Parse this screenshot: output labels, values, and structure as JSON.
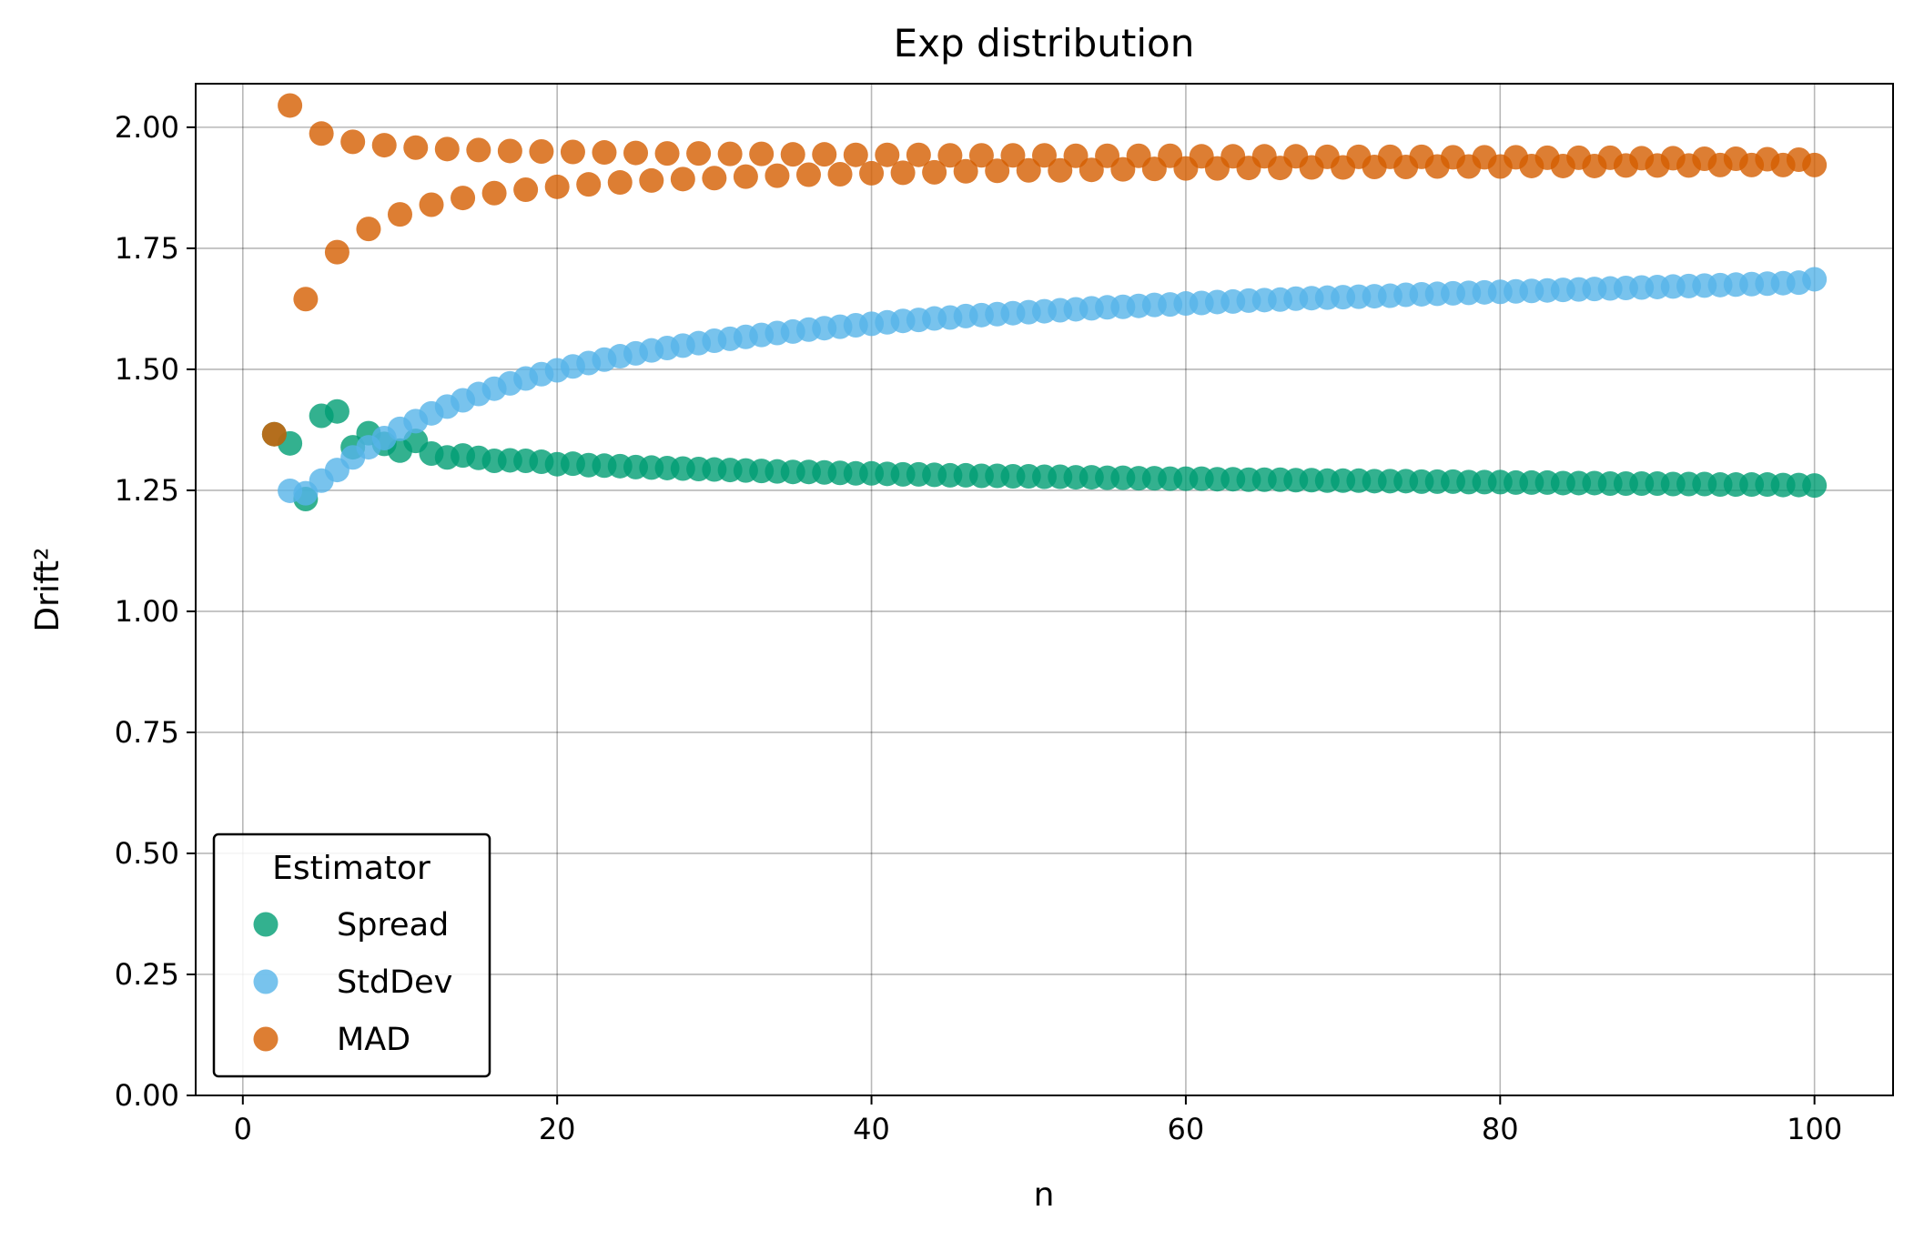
{
  "chart_data": {
    "type": "scatter",
    "title": "Exp distribution",
    "xlabel": "n",
    "ylabel": "Drift²",
    "xlim": [
      -3,
      105
    ],
    "ylim": [
      0,
      2.09
    ],
    "xticks": [
      0,
      20,
      40,
      60,
      80,
      100
    ],
    "yticks": [
      0,
      0.25,
      0.5,
      0.75,
      1.0,
      1.25,
      1.5,
      1.75,
      2.0
    ],
    "xtick_labels": [
      "0",
      "20",
      "40",
      "60",
      "80",
      "100"
    ],
    "ytick_labels": [
      "0.00",
      "0.25",
      "0.50",
      "0.75",
      "1.00",
      "1.25",
      "1.50",
      "1.75",
      "2.00"
    ],
    "grid": true,
    "legend": {
      "title": "Estimator",
      "placement": "lower-left"
    },
    "series": [
      {
        "name": "Spread",
        "color": "#009E73",
        "x": [
          2,
          3,
          4,
          5,
          6,
          7,
          8,
          9,
          10,
          11,
          12,
          13,
          14,
          15,
          16,
          17,
          18,
          19,
          20,
          21,
          22,
          23,
          24,
          25,
          26,
          27,
          28,
          29,
          30,
          31,
          32,
          33,
          34,
          35,
          36,
          37,
          38,
          39,
          40,
          41,
          42,
          43,
          44,
          45,
          46,
          47,
          48,
          49,
          50,
          51,
          52,
          53,
          54,
          55,
          56,
          57,
          58,
          59,
          60,
          61,
          62,
          63,
          64,
          65,
          66,
          67,
          68,
          69,
          70,
          71,
          72,
          73,
          74,
          75,
          76,
          77,
          78,
          79,
          80,
          81,
          82,
          83,
          84,
          85,
          86,
          87,
          88,
          89,
          90,
          91,
          92,
          93,
          94,
          95,
          96,
          97,
          98,
          99,
          100
        ],
        "y": [
          1.366,
          1.347,
          1.232,
          1.404,
          1.413,
          1.339,
          1.368,
          1.346,
          1.332,
          1.352,
          1.326,
          1.318,
          1.322,
          1.317,
          1.311,
          1.312,
          1.311,
          1.309,
          1.304,
          1.305,
          1.302,
          1.301,
          1.3,
          1.298,
          1.297,
          1.296,
          1.295,
          1.294,
          1.293,
          1.292,
          1.291,
          1.29,
          1.289,
          1.288,
          1.288,
          1.287,
          1.286,
          1.285,
          1.285,
          1.284,
          1.283,
          1.283,
          1.282,
          1.281,
          1.281,
          1.28,
          1.28,
          1.279,
          1.279,
          1.278,
          1.278,
          1.277,
          1.277,
          1.276,
          1.276,
          1.275,
          1.275,
          1.274,
          1.274,
          1.274,
          1.273,
          1.273,
          1.272,
          1.272,
          1.272,
          1.271,
          1.271,
          1.27,
          1.27,
          1.27,
          1.269,
          1.269,
          1.269,
          1.268,
          1.268,
          1.268,
          1.267,
          1.267,
          1.267,
          1.266,
          1.266,
          1.266,
          1.265,
          1.265,
          1.265,
          1.264,
          1.264,
          1.264,
          1.264,
          1.263,
          1.263,
          1.263,
          1.262,
          1.262,
          1.262,
          1.262,
          1.261,
          1.261,
          1.26
        ]
      },
      {
        "name": "StdDev",
        "color": "#56B4E9",
        "x": [
          3,
          4,
          5,
          6,
          7,
          8,
          9,
          10,
          11,
          12,
          13,
          14,
          15,
          16,
          17,
          18,
          19,
          20,
          21,
          22,
          23,
          24,
          25,
          26,
          27,
          28,
          29,
          30,
          31,
          32,
          33,
          34,
          35,
          36,
          37,
          38,
          39,
          40,
          41,
          42,
          43,
          44,
          45,
          46,
          47,
          48,
          49,
          50,
          51,
          52,
          53,
          54,
          55,
          56,
          57,
          58,
          59,
          60,
          61,
          62,
          63,
          64,
          65,
          66,
          67,
          68,
          69,
          70,
          71,
          72,
          73,
          74,
          75,
          76,
          77,
          78,
          79,
          80,
          81,
          82,
          83,
          84,
          85,
          86,
          87,
          88,
          89,
          90,
          91,
          92,
          93,
          94,
          95,
          96,
          97,
          98,
          99,
          100
        ],
        "y": [
          1.249,
          1.244,
          1.27,
          1.292,
          1.318,
          1.339,
          1.358,
          1.377,
          1.393,
          1.409,
          1.423,
          1.436,
          1.449,
          1.46,
          1.471,
          1.481,
          1.49,
          1.498,
          1.506,
          1.513,
          1.52,
          1.527,
          1.533,
          1.539,
          1.544,
          1.549,
          1.554,
          1.559,
          1.563,
          1.567,
          1.571,
          1.575,
          1.578,
          1.582,
          1.585,
          1.588,
          1.591,
          1.594,
          1.597,
          1.6,
          1.602,
          1.605,
          1.607,
          1.61,
          1.612,
          1.614,
          1.616,
          1.618,
          1.62,
          1.622,
          1.624,
          1.626,
          1.628,
          1.629,
          1.631,
          1.633,
          1.634,
          1.636,
          1.637,
          1.639,
          1.64,
          1.642,
          1.643,
          1.644,
          1.646,
          1.647,
          1.648,
          1.649,
          1.65,
          1.651,
          1.652,
          1.654,
          1.655,
          1.656,
          1.657,
          1.658,
          1.659,
          1.66,
          1.661,
          1.662,
          1.663,
          1.664,
          1.665,
          1.666,
          1.667,
          1.668,
          1.669,
          1.67,
          1.671,
          1.672,
          1.673,
          1.674,
          1.675,
          1.676,
          1.677,
          1.678,
          1.679,
          1.686
        ]
      },
      {
        "name": "MAD",
        "color": "#D55E00",
        "x": [
          2,
          3,
          4,
          5,
          6,
          7,
          8,
          9,
          10,
          11,
          12,
          13,
          14,
          15,
          16,
          17,
          18,
          19,
          20,
          21,
          22,
          23,
          24,
          25,
          26,
          27,
          28,
          29,
          30,
          31,
          32,
          33,
          34,
          35,
          36,
          37,
          38,
          39,
          40,
          41,
          42,
          43,
          44,
          45,
          46,
          47,
          48,
          49,
          50,
          51,
          52,
          53,
          54,
          55,
          56,
          57,
          58,
          59,
          60,
          61,
          62,
          63,
          64,
          65,
          66,
          67,
          68,
          69,
          70,
          71,
          72,
          73,
          74,
          75,
          76,
          77,
          78,
          79,
          80,
          81,
          82,
          83,
          84,
          85,
          86,
          87,
          88,
          89,
          90,
          91,
          92,
          93,
          94,
          95,
          96,
          97,
          98,
          99,
          100
        ],
        "y": [
          1.366,
          2.045,
          1.645,
          1.987,
          1.742,
          1.97,
          1.79,
          1.963,
          1.82,
          1.958,
          1.84,
          1.955,
          1.854,
          1.953,
          1.864,
          1.951,
          1.871,
          1.95,
          1.877,
          1.949,
          1.882,
          1.948,
          1.886,
          1.947,
          1.89,
          1.946,
          1.893,
          1.946,
          1.895,
          1.945,
          1.898,
          1.945,
          1.9,
          1.944,
          1.902,
          1.944,
          1.903,
          1.943,
          1.905,
          1.943,
          1.906,
          1.943,
          1.907,
          1.942,
          1.909,
          1.942,
          1.91,
          1.942,
          1.911,
          1.942,
          1.911,
          1.941,
          1.912,
          1.941,
          1.913,
          1.941,
          1.914,
          1.941,
          1.915,
          1.94,
          1.915,
          1.94,
          1.916,
          1.94,
          1.916,
          1.94,
          1.917,
          1.939,
          1.917,
          1.939,
          1.918,
          1.939,
          1.918,
          1.939,
          1.919,
          1.938,
          1.919,
          1.938,
          1.919,
          1.938,
          1.92,
          1.937,
          1.92,
          1.937,
          1.92,
          1.937,
          1.921,
          1.936,
          1.921,
          1.936,
          1.921,
          1.935,
          1.922,
          1.935,
          1.922,
          1.934,
          1.922,
          1.933,
          1.922
        ]
      }
    ]
  }
}
